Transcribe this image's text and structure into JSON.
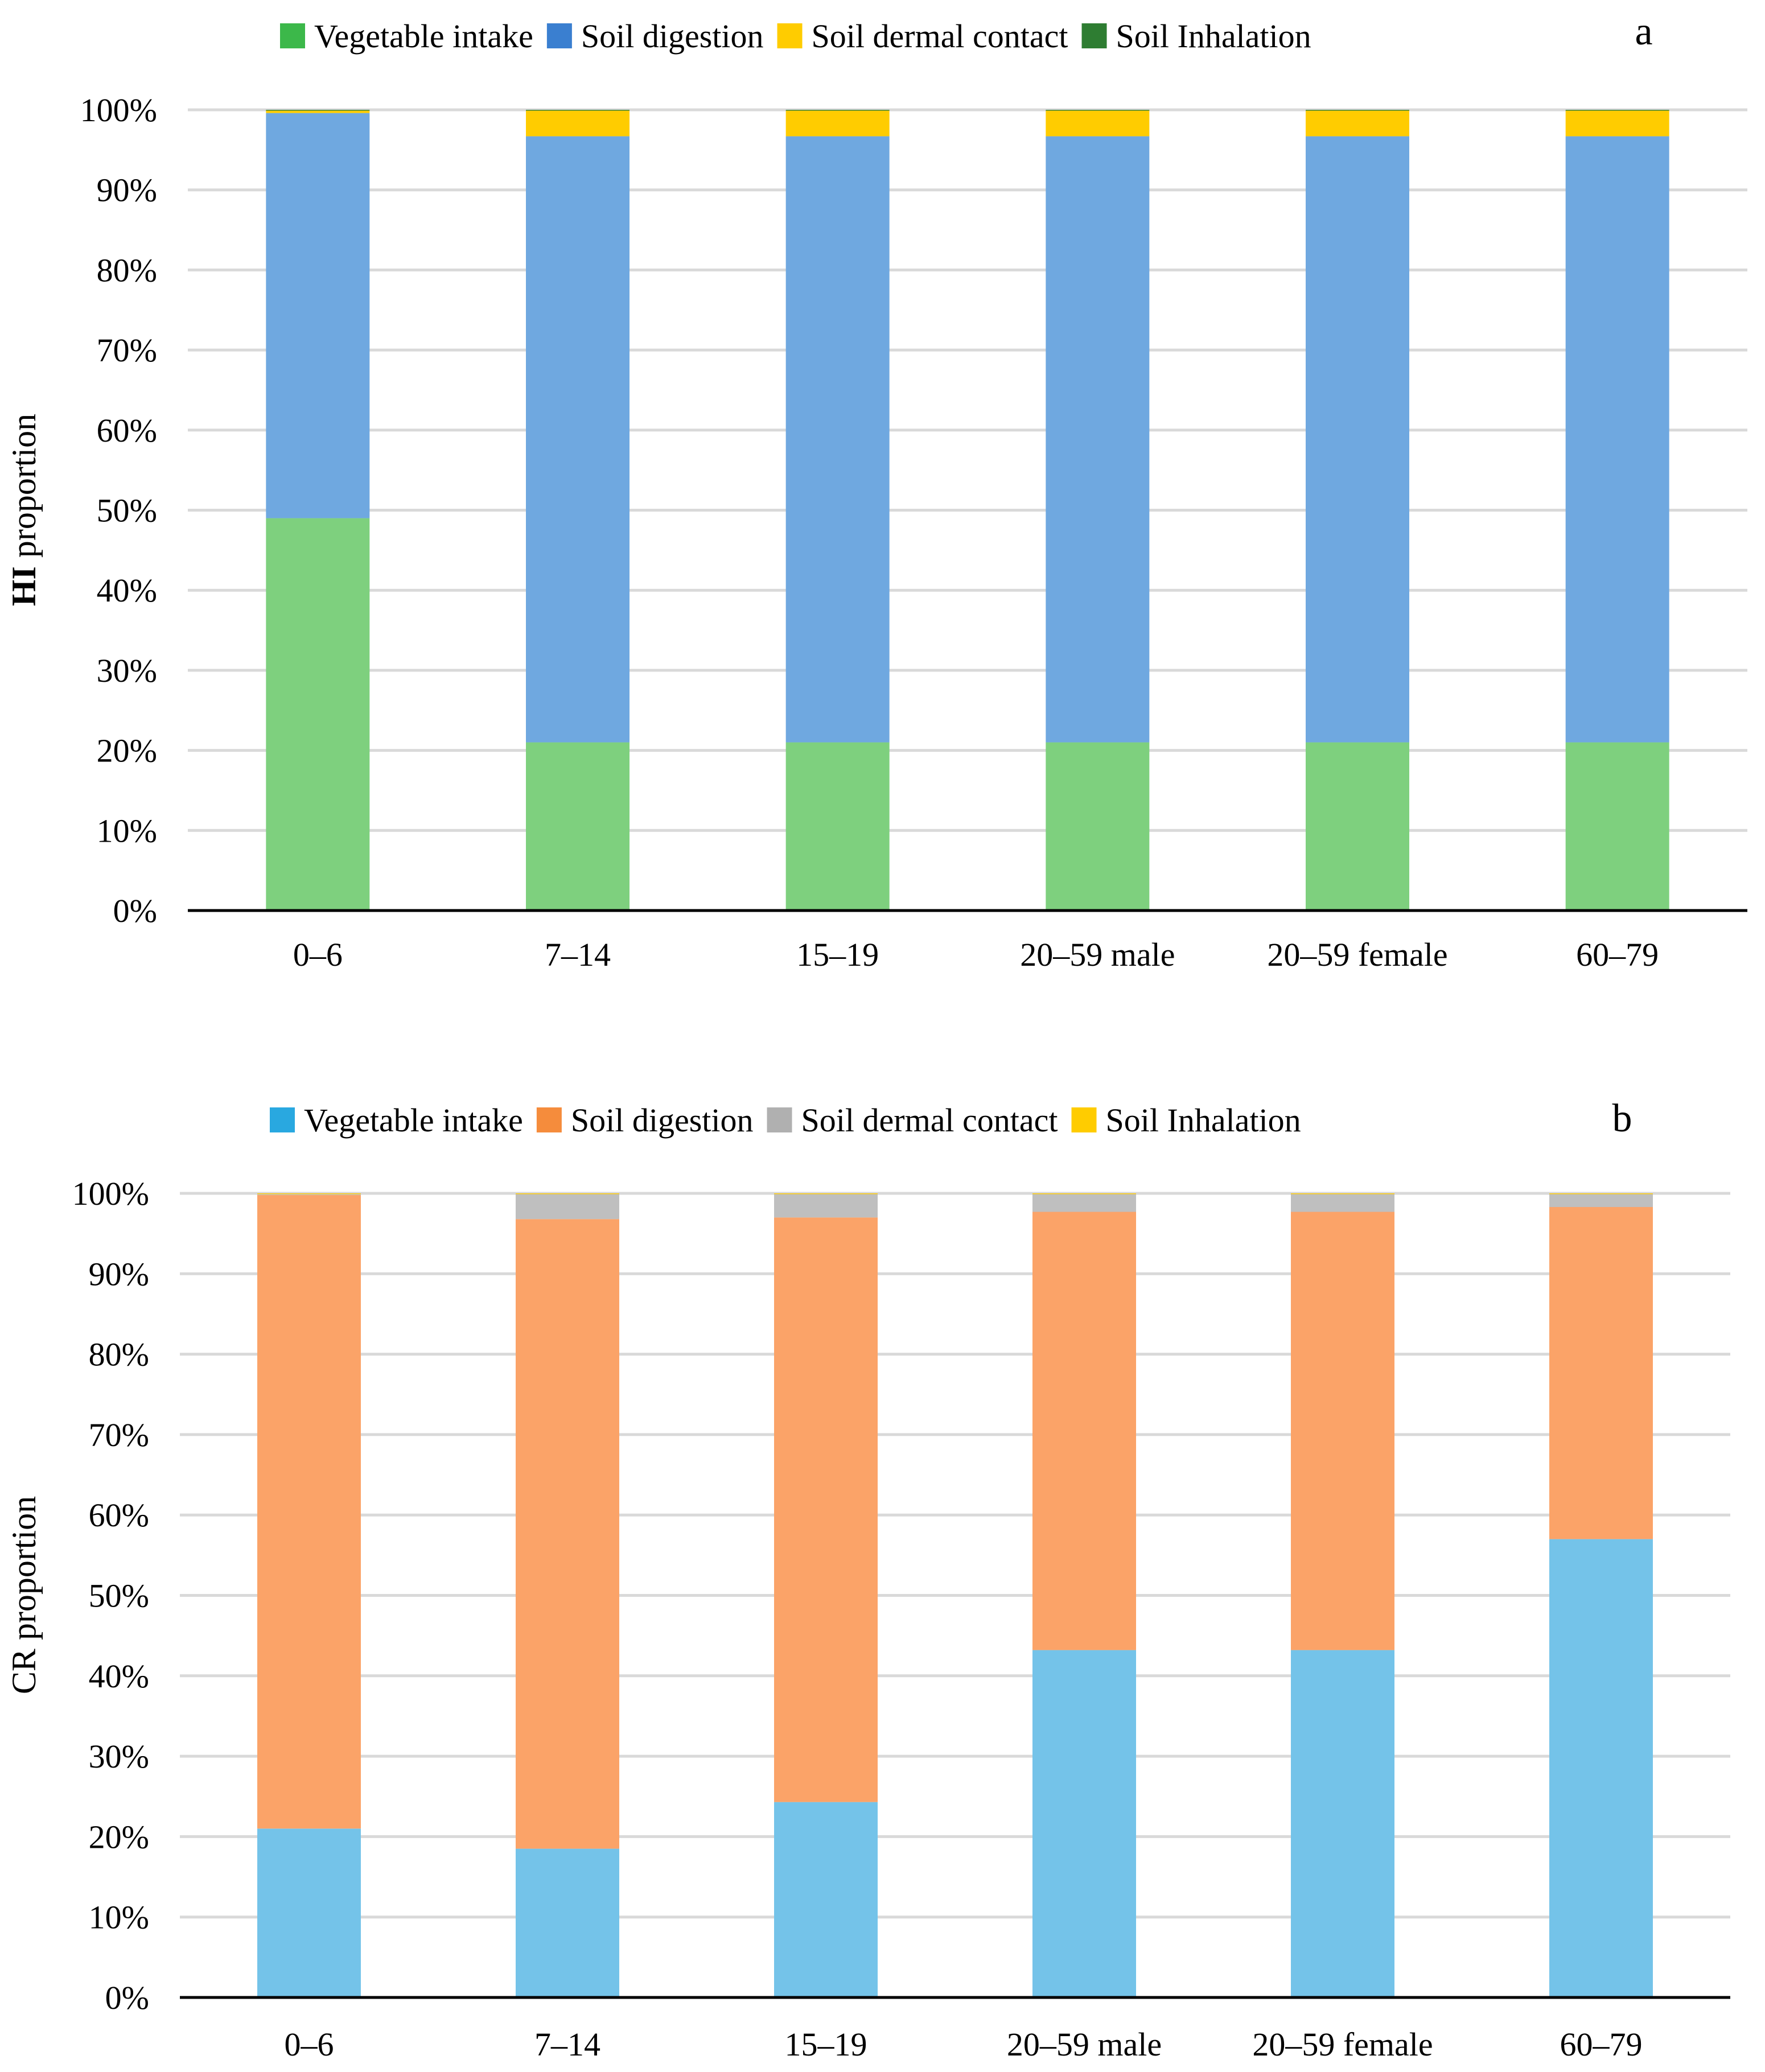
{
  "chart_data": [
    {
      "type": "bar",
      "stacked": true,
      "panel_letter": "a",
      "ylabel_bold": "HI",
      "ylabel_rest": " proportion",
      "ylim": [
        0,
        100
      ],
      "yticks": [
        "0%",
        "10%",
        "20%",
        "30%",
        "40%",
        "50%",
        "60%",
        "70%",
        "80%",
        "90%",
        "100%"
      ],
      "categories": [
        "0–6",
        "7–14",
        "15–19",
        "20–59 male",
        "20–59 female",
        "60–79"
      ],
      "legend_position": "top",
      "series": [
        {
          "name": "Vegetable intake",
          "color": "#7ed07e",
          "legend_color": "#3cb84a",
          "values": [
            49,
            21,
            21,
            21,
            21,
            21
          ]
        },
        {
          "name": "Soil digestion",
          "color": "#6fa8e0",
          "legend_color": "#3a7fd0",
          "values": [
            50.6,
            75.7,
            75.7,
            75.7,
            75.7,
            75.7
          ]
        },
        {
          "name": "Soil dermal contact",
          "color": "#ffcc00",
          "legend_color": "#ffcc00",
          "values": [
            0.3,
            3.2,
            3.2,
            3.2,
            3.2,
            3.2
          ]
        },
        {
          "name": "Soil Inhalation",
          "color": "#2e7d32",
          "legend_color": "#2e7d32",
          "values": [
            0.1,
            0.1,
            0.1,
            0.1,
            0.1,
            0.1
          ]
        }
      ]
    },
    {
      "type": "bar",
      "stacked": true,
      "panel_letter": "b",
      "ylabel_bold": "",
      "ylabel_rest": "CR proportion",
      "ylim": [
        0,
        100
      ],
      "yticks": [
        "0%",
        "10%",
        "20%",
        "30%",
        "40%",
        "50%",
        "60%",
        "70%",
        "80%",
        "90%",
        "100%"
      ],
      "categories": [
        "0–6",
        "7–14",
        "15–19",
        "20–59 male",
        "20–59 female",
        "60–79"
      ],
      "legend_position": "top",
      "series": [
        {
          "name": "Vegetable intake",
          "color": "#74c3e9",
          "legend_color": "#29a8e0",
          "values": [
            21,
            18.5,
            24.3,
            43.2,
            43.2,
            57
          ]
        },
        {
          "name": "Soil digestion",
          "color": "#fba368",
          "legend_color": "#f58c3c",
          "values": [
            78.8,
            78.3,
            72.7,
            54.5,
            54.5,
            41.3
          ]
        },
        {
          "name": "Soil dermal contact",
          "color": "#bfbfbf",
          "legend_color": "#b0b0b0",
          "values": [
            0.1,
            3.1,
            2.9,
            2.2,
            2.2,
            1.6
          ]
        },
        {
          "name": "Soil Inhalation",
          "color": "#ffcc00",
          "legend_color": "#ffcc00",
          "values": [
            0.1,
            0.1,
            0.1,
            0.1,
            0.1,
            0.1
          ]
        }
      ]
    }
  ]
}
